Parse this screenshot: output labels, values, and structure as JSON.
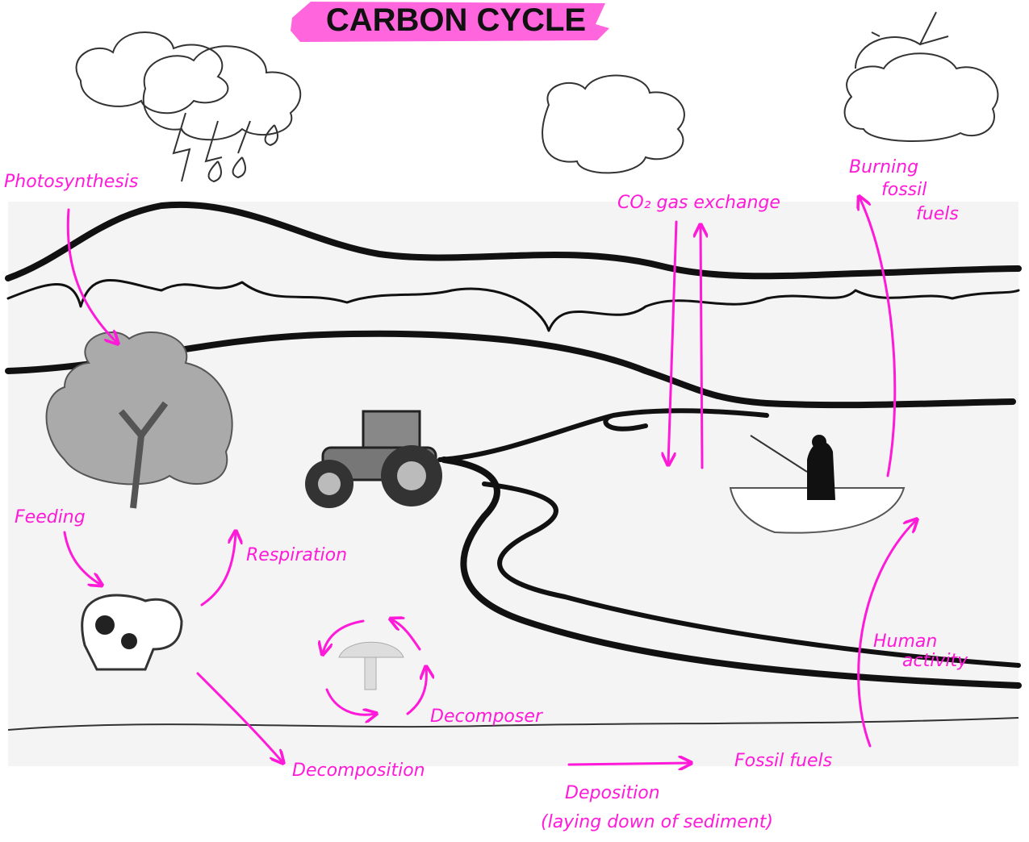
{
  "header": {
    "title": "CARBON CYCLE"
  },
  "labels": {
    "photosynthesis": "Photosynthesis",
    "gas_exchange": "CO₂ gas exchange",
    "burning": [
      "Burning",
      "fossil",
      "fuels"
    ],
    "feeding": "Feeding",
    "respiration": "Respiration",
    "decomposer": "Decomposer",
    "decomposition": "Decomposition",
    "human_activity": [
      "Human",
      "activity"
    ],
    "fossil_fuels": "Fossil fuels",
    "deposition": [
      "Deposition",
      "(laying down of sediment)"
    ]
  }
}
